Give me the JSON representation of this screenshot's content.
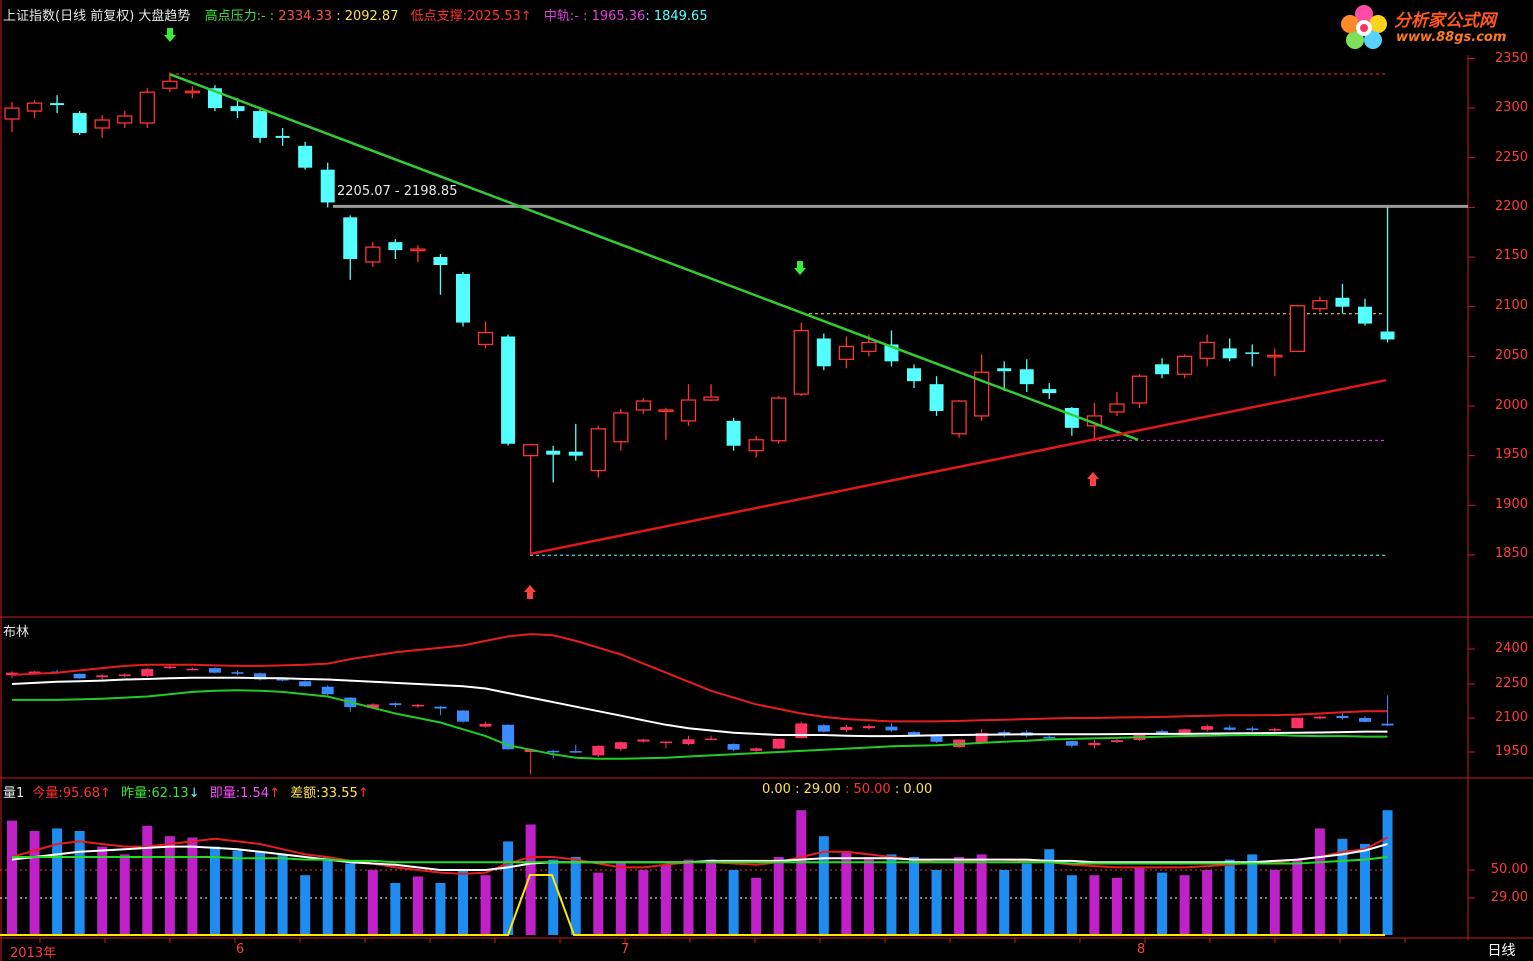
{
  "header": {
    "title": "上证指数(日线 前复权) 大盘趋势",
    "high_label": "高点压力:",
    "high_dash": "- : ",
    "high_v1": "2334.33",
    "high_v2": ": 2092.87",
    "low_label": "低点支撑:",
    "low_v1": "2025.53",
    "low_arrow": "↑",
    "mid_label": "中轨:",
    "mid_dash": "- : ",
    "mid_v1": "1965.36",
    "mid_v2": ": 1849.65"
  },
  "logo": {
    "name": "分析家公式网",
    "url": "www.88gs.com"
  },
  "price_panel": {
    "range_label": "2205.07 - 2198.85",
    "y_ticks": [
      "2350",
      "2300",
      "2250",
      "2200",
      "2150",
      "2100",
      "2050",
      "2000",
      "1950",
      "1900",
      "1850"
    ]
  },
  "boll_panel": {
    "title": "布林",
    "y_ticks": [
      "2400",
      "2250",
      "2100",
      "1950"
    ]
  },
  "vol_panel": {
    "title": "量1",
    "today_label": "今量:",
    "today_value": "95.68",
    "today_arrow": "↑",
    "yest_label": "昨量:",
    "yest_value": "62.13",
    "yest_arrow": "↓",
    "instant_label": "即量:",
    "instant_value": "1.54",
    "instant_arrow": "↑",
    "diff_label": "差额:",
    "diff_value": "33.55",
    "diff_arrow": "↑",
    "extra_1": "0.00",
    "extra_2": ": 29.00",
    "extra_3": ": 50.00",
    "extra_4": ": 0.00",
    "y_ticks": [
      "50.00",
      "29.00"
    ]
  },
  "x_axis": {
    "labels": [
      "2013年",
      "6",
      "7",
      "8"
    ]
  },
  "period_button": "日线",
  "colors": {
    "up": "#ff3232",
    "down": "#54ffff",
    "trend_down": "#33cc33",
    "trend_up": "#e01818",
    "axis": "#c81e1e"
  },
  "candles": [
    [
      2289,
      2300,
      2276,
      2306
    ],
    [
      2297,
      2305,
      2290,
      2308
    ],
    [
      2305,
      2303,
      2295,
      2313
    ],
    [
      2295,
      2275,
      2273,
      2297
    ],
    [
      2280,
      2288,
      2270,
      2293
    ],
    [
      2285,
      2292,
      2280,
      2297
    ],
    [
      2285,
      2316,
      2280,
      2320
    ],
    [
      2320,
      2327,
      2316,
      2336
    ],
    [
      2316,
      2317,
      2310,
      2322
    ],
    [
      2320,
      2300,
      2297,
      2323
    ],
    [
      2302,
      2297,
      2290,
      2310
    ],
    [
      2297,
      2270,
      2265,
      2300
    ],
    [
      2272,
      2270,
      2262,
      2280
    ],
    [
      2262,
      2240,
      2238,
      2266
    ],
    [
      2238,
      2205,
      2200,
      2245
    ],
    [
      2190,
      2148,
      2127,
      2192
    ],
    [
      2145,
      2160,
      2140,
      2165
    ],
    [
      2165,
      2157,
      2148,
      2168
    ],
    [
      2157,
      2158,
      2145,
      2162
    ],
    [
      2150,
      2142,
      2112,
      2153
    ],
    [
      2133,
      2084,
      2080,
      2135
    ],
    [
      2062,
      2074,
      2058,
      2085
    ],
    [
      2070,
      1962,
      1960,
      2072
    ],
    [
      1950,
      1961,
      1850,
      1962
    ],
    [
      1955,
      1951,
      1923,
      1960
    ],
    [
      1954,
      1950,
      1945,
      1982
    ],
    [
      1935,
      1977,
      1928,
      1980
    ],
    [
      1964,
      1993,
      1955,
      1997
    ],
    [
      1996,
      2005,
      1992,
      2008
    ],
    [
      1996,
      1996,
      1966,
      1998
    ],
    [
      1985,
      2006,
      1980,
      2022
    ],
    [
      2006,
      2009,
      2005,
      2022
    ],
    [
      1985,
      1960,
      1955,
      1988
    ],
    [
      1955,
      1966,
      1948,
      1970
    ],
    [
      1965,
      2008,
      1962,
      2010
    ],
    [
      2012,
      2076,
      2010,
      2084
    ],
    [
      2068,
      2040,
      2036,
      2073
    ],
    [
      2047,
      2060,
      2038,
      2070
    ],
    [
      2055,
      2064,
      2050,
      2072
    ],
    [
      2062,
      2045,
      2040,
      2076
    ],
    [
      2038,
      2025,
      2018,
      2042
    ],
    [
      2022,
      1995,
      1990,
      2030
    ],
    [
      1972,
      2005,
      1968,
      2006
    ],
    [
      1990,
      2034,
      1985,
      2052
    ],
    [
      2038,
      2035,
      2015,
      2045
    ],
    [
      2037,
      2022,
      2014,
      2047
    ],
    [
      2017,
      2013,
      2007,
      2023
    ],
    [
      1998,
      1978,
      1970,
      1999
    ],
    [
      1980,
      1990,
      1965,
      2003
    ],
    [
      1994,
      2002,
      1990,
      2014
    ],
    [
      2003,
      2030,
      1998,
      2032
    ],
    [
      2042,
      2032,
      2028,
      2048
    ],
    [
      2032,
      2050,
      2028,
      2052
    ],
    [
      2048,
      2064,
      2040,
      2072
    ],
    [
      2058,
      2048,
      2045,
      2068
    ],
    [
      2054,
      2053,
      2040,
      2062
    ],
    [
      2050,
      2051,
      2030,
      2058
    ],
    [
      2055,
      2101,
      2055,
      2102
    ],
    [
      2098,
      2106,
      2095,
      2110
    ],
    [
      2109,
      2100,
      2093,
      2123
    ],
    [
      2100,
      2083,
      2081,
      2108
    ],
    [
      2075,
      2067,
      2064,
      2200
    ]
  ]
}
